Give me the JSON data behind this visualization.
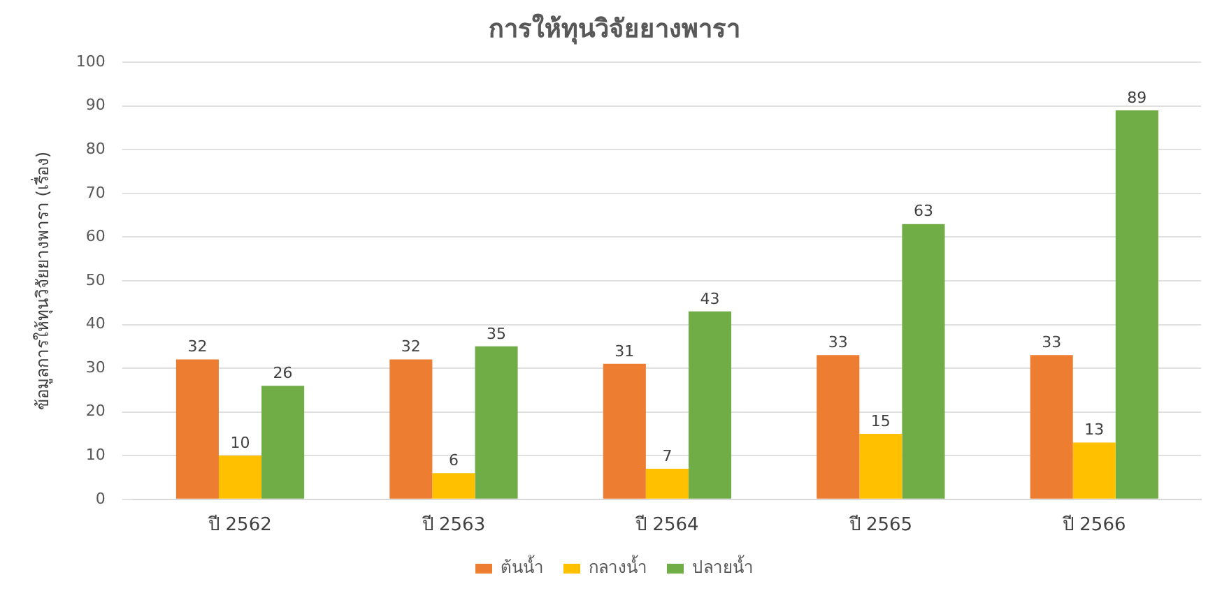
{
  "chart_data": {
    "type": "bar",
    "title": "การให้ทุนวิจัยยางพารา",
    "ylabel": "ข้อมูลการให้ทุนวิจัยยางพารา (เรื่อง)",
    "categories": [
      "ปี 2562",
      "ปี 2563",
      "ปี 2564",
      "ปี 2565",
      "ปี 2566"
    ],
    "series": [
      {
        "name": "ต้นน้ำ",
        "color": "#ed7d31",
        "values": [
          32,
          32,
          31,
          33,
          33
        ]
      },
      {
        "name": "กลางน้ำ",
        "color": "#ffc000",
        "values": [
          10,
          6,
          7,
          15,
          13
        ]
      },
      {
        "name": "ปลายน้ำ",
        "color": "#70ad47",
        "values": [
          26,
          35,
          43,
          63,
          89
        ]
      }
    ],
    "ylim": [
      0,
      100
    ],
    "yticks": [
      0,
      10,
      20,
      30,
      40,
      50,
      60,
      70,
      80,
      90,
      100
    ],
    "grid": "y",
    "legend": "bottom",
    "data_labels": true
  }
}
